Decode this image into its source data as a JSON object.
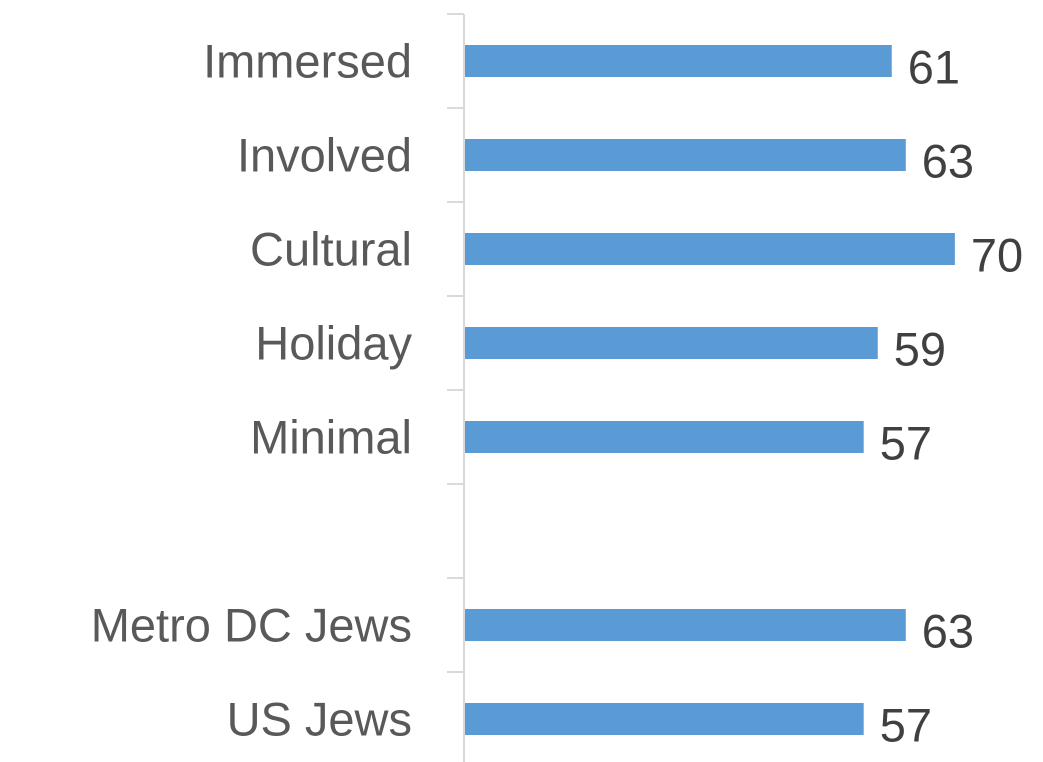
{
  "chart_data": {
    "type": "barh",
    "categories": [
      "Immersed",
      "Involved",
      "Cultural",
      "Holiday",
      "Minimal",
      null,
      "Metro DC Jews",
      "US Jews"
    ],
    "values": [
      61,
      63,
      70,
      59,
      57,
      null,
      63,
      57
    ],
    "color": "#5b9bd5",
    "xlim": [
      0,
      80
    ]
  }
}
